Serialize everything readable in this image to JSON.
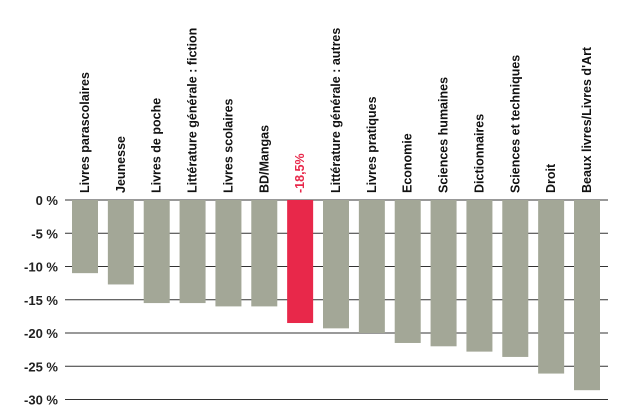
{
  "chart_data": {
    "type": "bar",
    "title": "",
    "xlabel": "",
    "ylabel": "",
    "ylim": [
      -30,
      0
    ],
    "yticks": [
      0,
      -5,
      -10,
      -15,
      -20,
      -25,
      -30
    ],
    "ytick_labels": [
      "0 %",
      "-5 %",
      "-10 %",
      "-15 %",
      "-20 %",
      "-25 %",
      "-30 %"
    ],
    "grid": true,
    "categories": [
      "Livres parascolaires",
      "Jeunesse",
      "Livres de poche",
      "Littérature générale : fiction",
      "Livres scolaires",
      "BD/Mangas",
      "-18,5%",
      "Littérature générale : autres",
      "Livres pratiques",
      "Economie",
      "Sciences humaines",
      "Dictionnaires",
      "Sciences et techniques",
      "Droit",
      "Beaux livres/Livres d'Art"
    ],
    "values": [
      -11.0,
      -12.7,
      -15.5,
      -15.5,
      -16.0,
      -16.0,
      -18.5,
      -19.3,
      -20.0,
      -21.5,
      -22.0,
      -22.8,
      -23.6,
      -26.1,
      -28.6
    ],
    "highlight_index": 6,
    "colors": {
      "bar": "#a3a797",
      "highlight": "#e8284a",
      "grid": "#333333"
    }
  }
}
